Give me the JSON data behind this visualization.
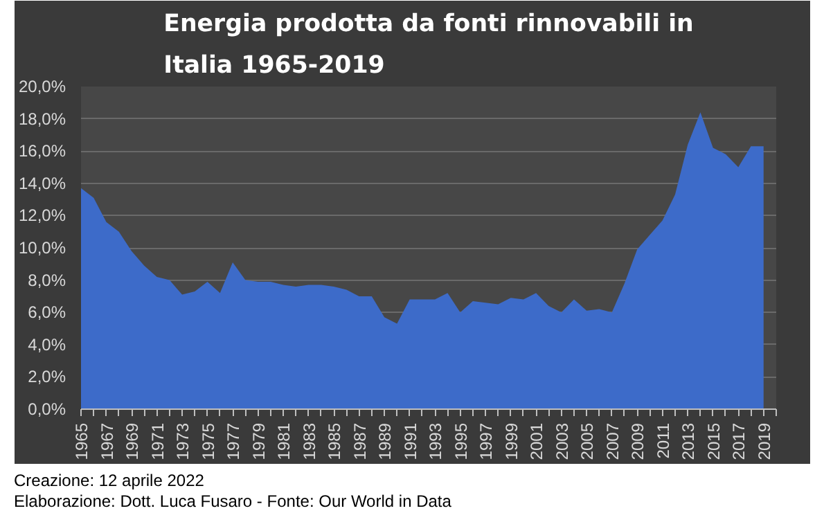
{
  "chart_data": {
    "type": "area",
    "title": "Energia prodotta da fonti rinnovabili in Italia 1965-2019",
    "x": [
      1965,
      1966,
      1967,
      1968,
      1969,
      1970,
      1971,
      1972,
      1973,
      1974,
      1975,
      1976,
      1977,
      1978,
      1979,
      1980,
      1981,
      1982,
      1983,
      1984,
      1985,
      1986,
      1987,
      1988,
      1989,
      1990,
      1991,
      1992,
      1993,
      1994,
      1995,
      1996,
      1997,
      1998,
      1999,
      2000,
      2001,
      2002,
      2003,
      2004,
      2005,
      2006,
      2007,
      2008,
      2009,
      2010,
      2011,
      2012,
      2013,
      2014,
      2015,
      2016,
      2017,
      2018,
      2019
    ],
    "series": [
      {
        "color": "#3d6bc9",
        "values": [
          13.7,
          13.1,
          11.6,
          11.0,
          9.8,
          8.9,
          8.2,
          8.0,
          7.1,
          7.3,
          7.9,
          7.2,
          9.1,
          8.0,
          7.9,
          7.9,
          7.7,
          7.6,
          7.7,
          7.7,
          7.6,
          7.4,
          7.0,
          7.0,
          5.7,
          5.3,
          6.8,
          6.8,
          6.8,
          7.2,
          6.0,
          6.7,
          6.6,
          6.5,
          6.9,
          6.8,
          7.2,
          6.4,
          6.0,
          6.8,
          6.1,
          6.2,
          6.0,
          7.8,
          9.9,
          10.8,
          11.7,
          13.3,
          16.4,
          18.4,
          16.2,
          15.8,
          15.0,
          16.3,
          16.3
        ]
      }
    ],
    "xlim": [
      1965,
      2020
    ],
    "xticks": [
      1965,
      1967,
      1969,
      1971,
      1973,
      1975,
      1977,
      1979,
      1981,
      1983,
      1985,
      1987,
      1989,
      1991,
      1993,
      1995,
      1997,
      1999,
      2001,
      2003,
      2005,
      2007,
      2009,
      2011,
      2013,
      2015,
      2017,
      2019
    ],
    "ylim": [
      0,
      20
    ],
    "yticks": [
      {
        "value": 0,
        "label": "0,0%"
      },
      {
        "value": 2,
        "label": "2,0%"
      },
      {
        "value": 4,
        "label": "4,0%"
      },
      {
        "value": 6,
        "label": "6,0%"
      },
      {
        "value": 8,
        "label": "8,0%"
      },
      {
        "value": 10,
        "label": "10,0%"
      },
      {
        "value": 12,
        "label": "12,0%"
      },
      {
        "value": 14,
        "label": "14,0%"
      },
      {
        "value": 16,
        "label": "16,0%"
      },
      {
        "value": 18,
        "label": "18,0%"
      },
      {
        "value": 20,
        "label": "20,0%"
      }
    ],
    "grid": "y",
    "annotations": [
      "Creazione: 12 aprile 2022",
      "Elaborazione: Dott. Luca Fusaro - Fonte: Our World in Data"
    ]
  }
}
